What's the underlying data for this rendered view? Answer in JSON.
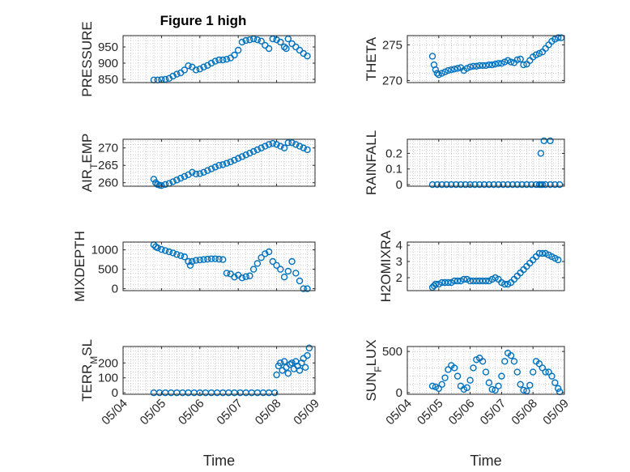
{
  "figure": {
    "title": "Figure 1 high"
  },
  "colors": {
    "marker": "#0072BD",
    "axis": "#262626",
    "grid": "#b0b0b0",
    "background": "#ffffff"
  },
  "chart_data": [
    {
      "type": "scatter",
      "ylabel": "PRESSURE",
      "xlabel": "",
      "xlim": [
        0,
        5
      ],
      "ylim": [
        840,
        985
      ],
      "xticks": [
        0,
        1,
        2,
        3,
        4,
        5
      ],
      "xtick_labels": [],
      "yticks": [
        850,
        900,
        950
      ],
      "ytick_labels": [
        "850",
        "900",
        "950"
      ],
      "grid": true,
      "x": [
        0.8,
        0.9,
        1.0,
        1.1,
        1.2,
        1.3,
        1.4,
        1.5,
        1.6,
        1.7,
        1.8,
        1.9,
        2.0,
        2.1,
        2.2,
        2.3,
        2.4,
        2.5,
        2.6,
        2.7,
        2.8,
        2.9,
        3.0,
        3.1,
        3.2,
        3.3,
        3.4,
        3.5,
        3.6,
        3.7,
        3.8,
        3.9,
        4.0,
        4.1,
        4.2,
        4.25,
        4.3,
        4.4,
        4.5,
        4.6,
        4.7,
        4.8
      ],
      "y": [
        848,
        848,
        849,
        850,
        853,
        860,
        866,
        870,
        879,
        892,
        888,
        879,
        882,
        888,
        893,
        900,
        906,
        910,
        910,
        912,
        916,
        925,
        940,
        965,
        970,
        972,
        975,
        972,
        968,
        955,
        945,
        975,
        972,
        965,
        950,
        945,
        975,
        960,
        950,
        940,
        930,
        922
      ]
    },
    {
      "type": "scatter",
      "ylabel": "THETA",
      "xlabel": "",
      "xlim": [
        0,
        5
      ],
      "ylim": [
        269.7,
        276.3
      ],
      "xticks": [
        0,
        1,
        2,
        3,
        4,
        5
      ],
      "xtick_labels": [],
      "yticks": [
        270,
        275
      ],
      "ytick_labels": [
        "270",
        "275"
      ],
      "grid": true,
      "x": [
        0.8,
        0.85,
        0.9,
        0.95,
        1.0,
        1.1,
        1.2,
        1.3,
        1.4,
        1.5,
        1.6,
        1.7,
        1.8,
        1.9,
        2.0,
        2.1,
        2.2,
        2.3,
        2.4,
        2.5,
        2.6,
        2.7,
        2.8,
        2.9,
        3.0,
        3.1,
        3.2,
        3.3,
        3.4,
        3.5,
        3.6,
        3.7,
        3.8,
        3.9,
        4.0,
        4.1,
        4.2,
        4.3,
        4.4,
        4.5,
        4.6,
        4.7,
        4.8,
        4.9
      ],
      "y": [
        273.4,
        272.2,
        271.5,
        271.0,
        270.8,
        271.0,
        271.2,
        271.4,
        271.5,
        271.6,
        271.7,
        271.8,
        271.4,
        271.7,
        271.9,
        272.0,
        272.0,
        272.1,
        272.1,
        272.1,
        272.2,
        272.2,
        272.3,
        272.4,
        272.4,
        272.6,
        272.8,
        272.6,
        272.5,
        272.9,
        273.0,
        272.2,
        272.3,
        272.8,
        273.3,
        273.6,
        273.8,
        274.0,
        274.5,
        275.0,
        275.5,
        275.8,
        276.0,
        276.0
      ]
    },
    {
      "type": "scatter",
      "ylabel": "AIR_TEMP",
      "xlabel": "",
      "xlim": [
        0,
        5
      ],
      "ylim": [
        259,
        272.5
      ],
      "xticks": [
        0,
        1,
        2,
        3,
        4,
        5
      ],
      "xtick_labels": [],
      "yticks": [
        260,
        265,
        270
      ],
      "ytick_labels": [
        "260",
        "265",
        "270"
      ],
      "grid": true,
      "x": [
        0.8,
        0.85,
        0.9,
        0.95,
        1.0,
        1.1,
        1.2,
        1.3,
        1.4,
        1.5,
        1.6,
        1.7,
        1.8,
        1.9,
        2.0,
        2.1,
        2.2,
        2.3,
        2.4,
        2.5,
        2.6,
        2.7,
        2.8,
        2.9,
        3.0,
        3.1,
        3.2,
        3.3,
        3.4,
        3.5,
        3.6,
        3.7,
        3.8,
        3.9,
        4.0,
        4.1,
        4.2,
        4.3,
        4.4,
        4.5,
        4.6,
        4.7,
        4.8
      ],
      "y": [
        261.0,
        260.0,
        259.5,
        259.3,
        259.2,
        259.5,
        259.8,
        260.3,
        260.8,
        261.3,
        261.8,
        262.3,
        263.0,
        262.5,
        262.6,
        263.0,
        263.5,
        264.0,
        264.5,
        265.0,
        265.2,
        265.6,
        266.0,
        266.5,
        267.0,
        267.5,
        268.0,
        268.5,
        269.0,
        269.5,
        270.0,
        270.5,
        271.0,
        271.3,
        271.0,
        270.5,
        270.0,
        271.5,
        271.5,
        271.0,
        270.5,
        270.0,
        269.5
      ]
    },
    {
      "type": "scatter",
      "ylabel": "RAINFALL",
      "xlabel": "",
      "xlim": [
        0,
        5
      ],
      "ylim": [
        -0.01,
        0.29
      ],
      "xticks": [
        0,
        1,
        2,
        3,
        4,
        5
      ],
      "xtick_labels": [],
      "yticks": [
        0,
        0.1,
        0.2
      ],
      "ytick_labels": [
        "0",
        "0.1",
        "0.2"
      ],
      "grid": true,
      "x": [
        0.8,
        0.95,
        1.1,
        1.25,
        1.4,
        1.55,
        1.7,
        1.85,
        2.0,
        2.15,
        2.3,
        2.45,
        2.6,
        2.75,
        2.9,
        3.05,
        3.2,
        3.35,
        3.5,
        3.65,
        3.8,
        3.95,
        4.1,
        4.2,
        4.25,
        4.3,
        4.4,
        4.55,
        4.7,
        4.85,
        4.25,
        4.35,
        4.55
      ],
      "y": [
        0,
        0,
        0,
        0,
        0,
        0,
        0,
        0,
        0,
        0,
        0,
        0,
        0,
        0,
        0,
        0,
        0,
        0,
        0,
        0,
        0,
        0,
        0,
        0,
        0,
        0,
        0,
        0,
        0,
        0,
        0.2,
        0.28,
        0.28
      ]
    },
    {
      "type": "scatter",
      "ylabel": "MIXDEPTH",
      "xlabel": "",
      "xlim": [
        0,
        5
      ],
      "ylim": [
        -50,
        1200
      ],
      "xticks": [
        0,
        1,
        2,
        3,
        4,
        5
      ],
      "xtick_labels": [],
      "yticks": [
        0,
        500,
        1000
      ],
      "ytick_labels": [
        "0",
        "500",
        "1000"
      ],
      "grid": true,
      "x": [
        0.8,
        0.85,
        0.9,
        1.0,
        1.1,
        1.2,
        1.3,
        1.4,
        1.5,
        1.6,
        1.7,
        1.75,
        1.8,
        1.9,
        2.0,
        2.1,
        2.2,
        2.3,
        2.4,
        2.5,
        2.6,
        2.7,
        2.8,
        2.9,
        3.0,
        3.1,
        3.2,
        3.3,
        3.4,
        3.5,
        3.6,
        3.7,
        3.8,
        3.9,
        4.0,
        4.1,
        4.2,
        4.3,
        4.4,
        4.5,
        4.6,
        4.7,
        4.8
      ],
      "y": [
        1130,
        1080,
        1050,
        1010,
        980,
        950,
        920,
        880,
        850,
        820,
        700,
        600,
        700,
        730,
        740,
        750,
        760,
        770,
        770,
        760,
        750,
        400,
        380,
        300,
        350,
        280,
        310,
        330,
        500,
        650,
        800,
        900,
        950,
        700,
        600,
        500,
        300,
        450,
        700,
        400,
        200,
        0,
        0
      ]
    },
    {
      "type": "scatter",
      "ylabel": "H2OMIXRA",
      "xlabel": "",
      "xlim": [
        0,
        5
      ],
      "ylim": [
        1.2,
        4.2
      ],
      "xticks": [
        0,
        1,
        2,
        3,
        4,
        5
      ],
      "xtick_labels": [],
      "yticks": [
        2,
        3,
        4
      ],
      "ytick_labels": [
        "2",
        "3",
        "4"
      ],
      "grid": true,
      "x": [
        0.8,
        0.85,
        0.9,
        1.0,
        1.1,
        1.2,
        1.3,
        1.4,
        1.5,
        1.6,
        1.7,
        1.8,
        1.9,
        2.0,
        2.1,
        2.2,
        2.3,
        2.4,
        2.5,
        2.6,
        2.7,
        2.8,
        2.9,
        3.0,
        3.1,
        3.2,
        3.3,
        3.4,
        3.5,
        3.6,
        3.7,
        3.8,
        3.9,
        4.0,
        4.1,
        4.2,
        4.3,
        4.4,
        4.5,
        4.6,
        4.7,
        4.8
      ],
      "y": [
        1.4,
        1.5,
        1.6,
        1.6,
        1.7,
        1.7,
        1.7,
        1.7,
        1.8,
        1.8,
        1.8,
        1.9,
        1.9,
        1.8,
        1.8,
        1.8,
        1.8,
        1.8,
        1.8,
        1.8,
        1.9,
        2.0,
        1.9,
        1.7,
        1.6,
        1.6,
        1.7,
        1.9,
        2.1,
        2.3,
        2.5,
        2.7,
        2.9,
        3.1,
        3.3,
        3.5,
        3.5,
        3.5,
        3.4,
        3.3,
        3.2,
        3.1
      ]
    },
    {
      "type": "scatter",
      "ylabel": "TERR_MSL",
      "xlabel": "Time",
      "xlim": [
        0,
        5
      ],
      "ylim": [
        -10,
        310
      ],
      "xticks": [
        0,
        1,
        2,
        3,
        4,
        5
      ],
      "xtick_labels": [
        "05/04",
        "05/05",
        "05/06",
        "05/07",
        "05/08",
        "05/09"
      ],
      "yticks": [
        0,
        100,
        200
      ],
      "ytick_labels": [
        "0",
        "100",
        "200"
      ],
      "grid": true,
      "x": [
        0.8,
        0.95,
        1.1,
        1.25,
        1.4,
        1.55,
        1.7,
        1.85,
        2.0,
        2.15,
        2.3,
        2.45,
        2.6,
        2.75,
        2.9,
        3.05,
        3.2,
        3.35,
        3.5,
        3.65,
        3.8,
        3.95,
        4.0,
        4.05,
        4.1,
        4.15,
        4.2,
        4.25,
        4.3,
        4.35,
        4.4,
        4.45,
        4.5,
        4.55,
        4.6,
        4.65,
        4.7,
        4.75,
        4.8,
        4.85
      ],
      "y": [
        0,
        0,
        0,
        0,
        0,
        0,
        0,
        0,
        0,
        0,
        0,
        0,
        0,
        0,
        0,
        0,
        0,
        0,
        0,
        0,
        0,
        0,
        120,
        180,
        200,
        150,
        210,
        170,
        130,
        190,
        200,
        160,
        210,
        180,
        150,
        200,
        230,
        170,
        250,
        300
      ]
    },
    {
      "type": "scatter",
      "ylabel": "SUN_FLUX",
      "xlabel": "Time",
      "xlim": [
        0,
        5
      ],
      "ylim": [
        -20,
        560
      ],
      "xticks": [
        0,
        1,
        2,
        3,
        4,
        5
      ],
      "xtick_labels": [
        "05/04",
        "05/05",
        "05/06",
        "05/07",
        "05/08",
        "05/09"
      ],
      "yticks": [
        0,
        500
      ],
      "ytick_labels": [
        "0",
        "500"
      ],
      "grid": true,
      "x": [
        0.8,
        0.9,
        1.0,
        1.1,
        1.2,
        1.3,
        1.4,
        1.5,
        1.6,
        1.7,
        1.8,
        1.9,
        2.0,
        2.1,
        2.2,
        2.3,
        2.4,
        2.5,
        2.6,
        2.7,
        2.8,
        2.9,
        3.0,
        3.1,
        3.2,
        3.3,
        3.4,
        3.5,
        3.6,
        3.7,
        3.8,
        3.9,
        4.0,
        4.1,
        4.2,
        4.3,
        4.4,
        4.5,
        4.6,
        4.7,
        4.8,
        4.85
      ],
      "y": [
        80,
        70,
        50,
        100,
        180,
        280,
        330,
        300,
        200,
        80,
        40,
        60,
        150,
        300,
        400,
        420,
        380,
        250,
        120,
        40,
        30,
        80,
        200,
        380,
        480,
        450,
        380,
        250,
        100,
        30,
        20,
        90,
        250,
        380,
        350,
        300,
        250,
        250,
        200,
        120,
        50,
        10
      ]
    }
  ]
}
